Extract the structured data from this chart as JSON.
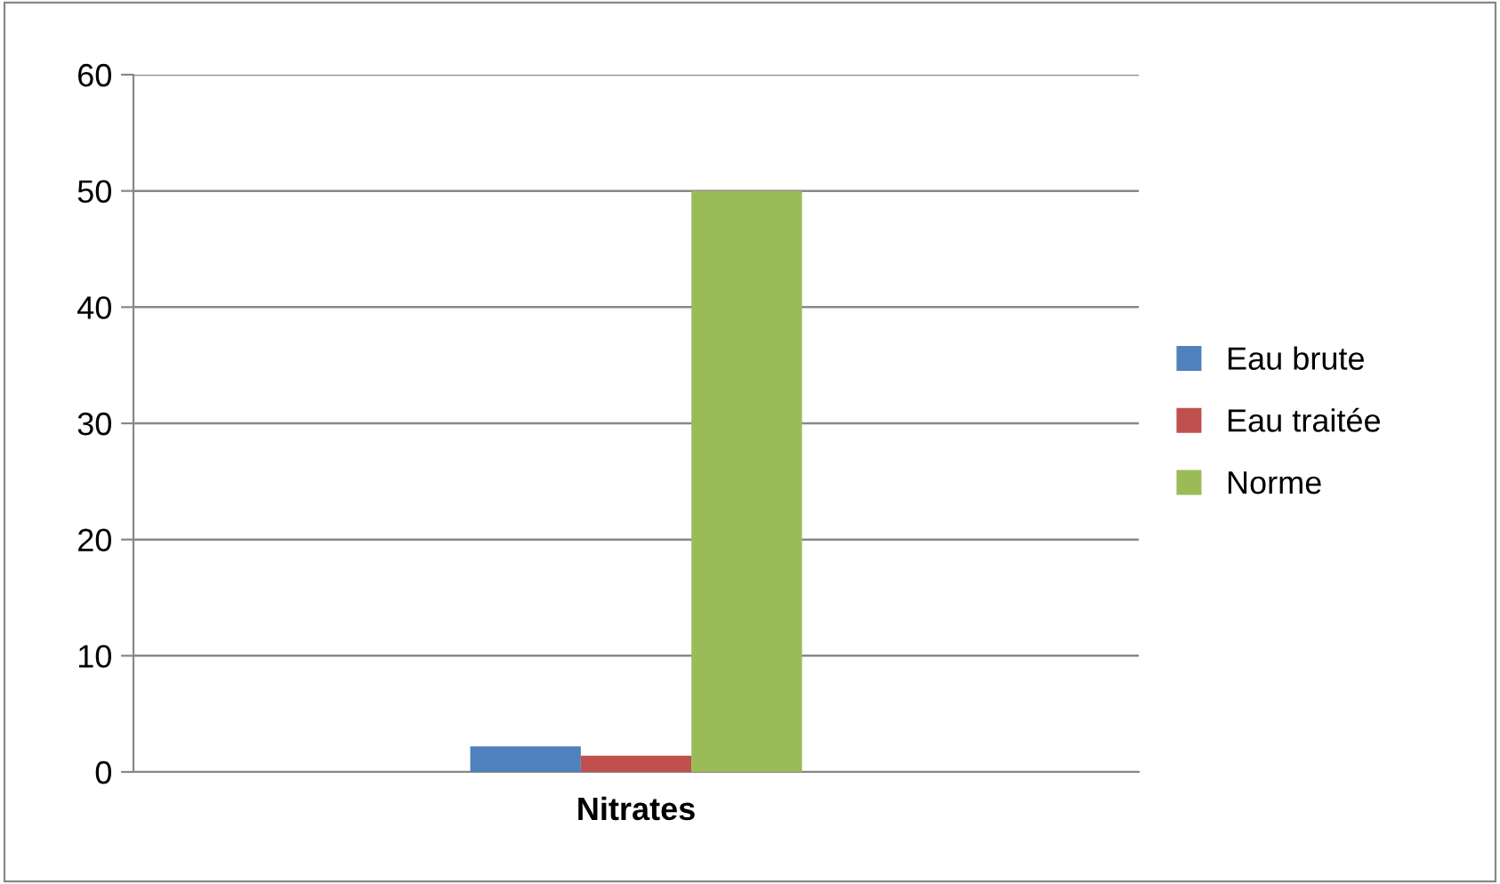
{
  "chart_data": {
    "type": "bar",
    "categories": [
      "Nitrates"
    ],
    "series": [
      {
        "name": "Eau brute",
        "color": "#4f81bd",
        "values": [
          2.2
        ]
      },
      {
        "name": "Eau traitée",
        "color": "#c0504d",
        "values": [
          1.4
        ]
      },
      {
        "name": "Norme",
        "color": "#9bbb59",
        "values": [
          50
        ]
      }
    ],
    "ylim": [
      0,
      60
    ],
    "yticks": [
      0,
      10,
      20,
      30,
      40,
      50,
      60
    ],
    "grid": "y",
    "legend": "right"
  }
}
